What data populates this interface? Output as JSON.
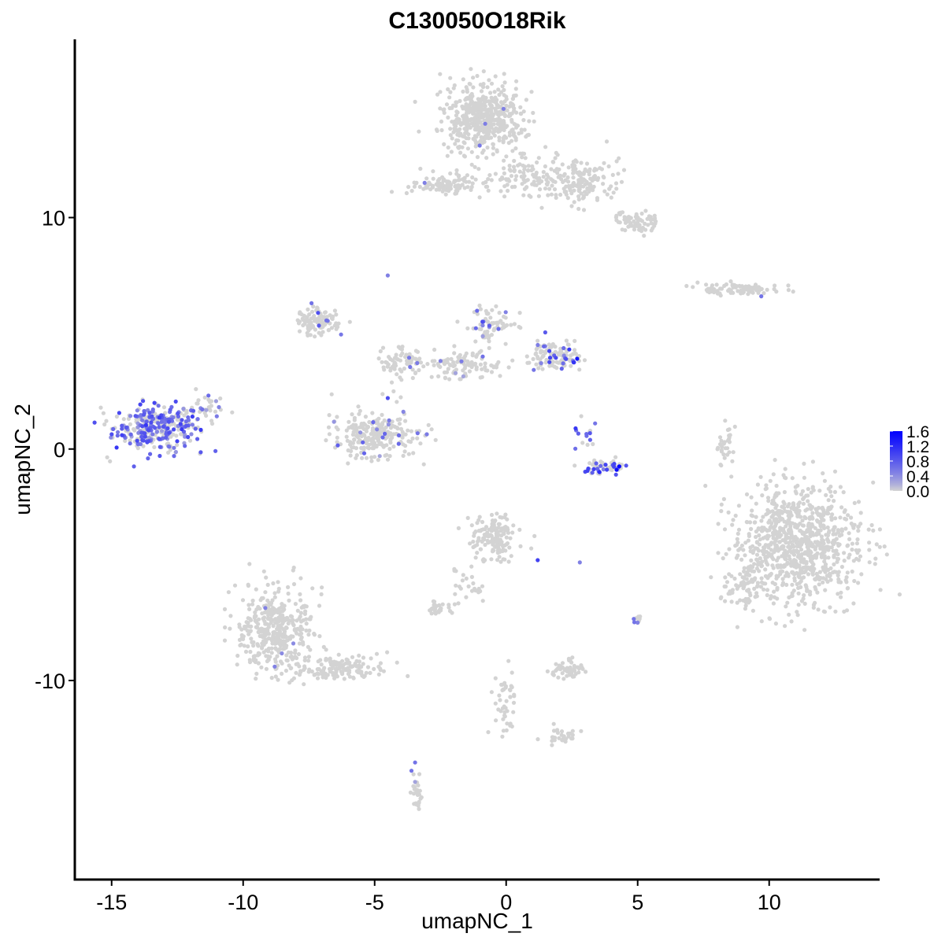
{
  "chart_data": {
    "type": "scatter",
    "title": "C130050O18Rik",
    "xlabel": "umapNC_1",
    "ylabel": "umapNC_2",
    "xlim": [
      -16.4,
      14.2
    ],
    "ylim": [
      -18.6,
      17.7
    ],
    "x_ticks": [
      -15,
      -10,
      -5,
      0,
      5,
      10
    ],
    "x_tick_labels": [
      "-15",
      "-10",
      "-5",
      "0",
      "5",
      "10"
    ],
    "y_ticks": [
      -10,
      0,
      10
    ],
    "y_tick_labels": [
      "-10",
      "0",
      "10"
    ],
    "grid": false,
    "legend": {
      "placement": "right",
      "type": "colorbar",
      "min": 0.0,
      "max": 1.6,
      "ticks": [
        0.0,
        0.4,
        0.8,
        1.2,
        1.6
      ],
      "tick_labels": [
        "0.0",
        "0.4",
        "0.8",
        "1.2",
        "1.6"
      ],
      "color_low": "#d3d3d3",
      "color_high": "#0000ff"
    },
    "background_color": "#d3d3d3",
    "clusters": [
      {
        "id": "left-blob",
        "cx": -13.3,
        "cy": 0.9,
        "rx": 1.5,
        "ry": 0.9,
        "n": 320,
        "expr_frac": 0.55,
        "expr_mean": 0.65
      },
      {
        "id": "left-blob-tail",
        "cx": -11.6,
        "cy": 1.7,
        "rx": 0.9,
        "ry": 0.6,
        "n": 40,
        "expr_frac": 0.2,
        "expr_mean": 0.5
      },
      {
        "id": "top-big",
        "cx": -0.9,
        "cy": 14.3,
        "rx": 1.4,
        "ry": 1.4,
        "n": 520,
        "expr_frac": 0.004,
        "expr_mean": 0.6
      },
      {
        "id": "top-arm-right",
        "cx": 2.8,
        "cy": 11.6,
        "rx": 1.4,
        "ry": 0.9,
        "n": 160,
        "expr_frac": 0.0,
        "expr_mean": 0.0
      },
      {
        "id": "top-arm-lower",
        "cx": 5.0,
        "cy": 9.8,
        "rx": 0.8,
        "ry": 0.4,
        "n": 70,
        "expr_frac": 0.0,
        "expr_mean": 0.0
      },
      {
        "id": "top-left-streak",
        "cx": -2.2,
        "cy": 11.4,
        "rx": 1.3,
        "ry": 0.45,
        "n": 110,
        "expr_frac": 0.01,
        "expr_mean": 0.6
      },
      {
        "id": "top-bridge",
        "cx": 0.9,
        "cy": 11.8,
        "rx": 1.1,
        "ry": 0.8,
        "n": 80,
        "expr_frac": 0.0,
        "expr_mean": 0.0
      },
      {
        "id": "right-streak",
        "cx": 8.9,
        "cy": 6.9,
        "rx": 1.4,
        "ry": 0.25,
        "n": 85,
        "expr_frac": 0.01,
        "expr_mean": 0.5
      },
      {
        "id": "mid-left-arm",
        "cx": -7.1,
        "cy": 5.5,
        "rx": 0.8,
        "ry": 0.5,
        "n": 110,
        "expr_frac": 0.05,
        "expr_mean": 0.55
      },
      {
        "id": "mid-stem",
        "cx": -4.0,
        "cy": 3.8,
        "rx": 0.8,
        "ry": 0.6,
        "n": 70,
        "expr_frac": 0.04,
        "expr_mean": 0.5
      },
      {
        "id": "mid-ring",
        "cx": -5.0,
        "cy": 0.6,
        "rx": 1.5,
        "ry": 0.9,
        "n": 240,
        "expr_frac": 0.04,
        "expr_mean": 0.5
      },
      {
        "id": "mid-upper-right",
        "cx": -0.5,
        "cy": 5.4,
        "rx": 0.8,
        "ry": 0.7,
        "n": 70,
        "expr_frac": 0.1,
        "expr_mean": 0.6
      },
      {
        "id": "mid-right-blob",
        "cx": 1.8,
        "cy": 4.0,
        "rx": 1.0,
        "ry": 0.5,
        "n": 120,
        "expr_frac": 0.18,
        "expr_mean": 0.7
      },
      {
        "id": "mid-connector",
        "cx": -1.6,
        "cy": 3.6,
        "rx": 1.4,
        "ry": 0.6,
        "n": 100,
        "expr_frac": 0.06,
        "expr_mean": 0.5
      },
      {
        "id": "arc-small",
        "cx": 3.8,
        "cy": -0.8,
        "rx": 0.8,
        "ry": 0.3,
        "n": 55,
        "expr_frac": 0.3,
        "expr_mean": 0.9
      },
      {
        "id": "arc-upper",
        "cx": 3.0,
        "cy": 0.6,
        "rx": 0.4,
        "ry": 0.6,
        "n": 15,
        "expr_frac": 0.3,
        "expr_mean": 0.7
      },
      {
        "id": "right-big",
        "cx": 11.1,
        "cy": -4.1,
        "rx": 2.2,
        "ry": 2.3,
        "n": 900,
        "expr_frac": 0.0,
        "expr_mean": 0.0
      },
      {
        "id": "right-big-wing",
        "cx": 9.0,
        "cy": -6.0,
        "rx": 0.7,
        "ry": 0.9,
        "n": 60,
        "expr_frac": 0.0,
        "expr_mean": 0.0
      },
      {
        "id": "right-arc",
        "cx": 8.3,
        "cy": 0.3,
        "rx": 0.3,
        "ry": 0.9,
        "n": 30,
        "expr_frac": 0.0,
        "expr_mean": 0.0
      },
      {
        "id": "bottom-left",
        "cx": -8.8,
        "cy": -7.9,
        "rx": 1.3,
        "ry": 1.7,
        "n": 400,
        "expr_frac": 0.01,
        "expr_mean": 0.5
      },
      {
        "id": "bottom-left-tail",
        "cx": -6.3,
        "cy": -9.5,
        "rx": 1.6,
        "ry": 0.45,
        "n": 140,
        "expr_frac": 0.0,
        "expr_mean": 0.0
      },
      {
        "id": "bottom-mid",
        "cx": -0.5,
        "cy": -3.8,
        "rx": 0.8,
        "ry": 0.9,
        "n": 150,
        "expr_frac": 0.01,
        "expr_mean": 0.5
      },
      {
        "id": "bottom-mid-stem",
        "cx": -1.4,
        "cy": -6.0,
        "rx": 0.5,
        "ry": 0.7,
        "n": 25,
        "expr_frac": 0.0,
        "expr_mean": 0.0
      },
      {
        "id": "bottom-small-left",
        "cx": -2.6,
        "cy": -6.9,
        "rx": 0.5,
        "ry": 0.25,
        "n": 30,
        "expr_frac": 0.0,
        "expr_mean": 0.0
      },
      {
        "id": "bottom-pair",
        "cx": 2.3,
        "cy": -9.5,
        "rx": 0.6,
        "ry": 0.4,
        "n": 55,
        "expr_frac": 0.0,
        "expr_mean": 0.0
      },
      {
        "id": "bottom-vertical",
        "cx": 0.0,
        "cy": -11.0,
        "rx": 0.4,
        "ry": 1.3,
        "n": 45,
        "expr_frac": 0.0,
        "expr_mean": 0.0
      },
      {
        "id": "bottom-right-streak",
        "cx": 2.2,
        "cy": -12.4,
        "rx": 0.7,
        "ry": 0.3,
        "n": 30,
        "expr_frac": 0.0,
        "expr_mean": 0.0
      },
      {
        "id": "bottom-tiny",
        "cx": -3.4,
        "cy": -15.0,
        "rx": 0.2,
        "ry": 0.7,
        "n": 30,
        "expr_frac": 0.02,
        "expr_mean": 0.5
      },
      {
        "id": "small-5",
        "cx": 5.0,
        "cy": -7.3,
        "rx": 0.12,
        "ry": 0.2,
        "n": 8,
        "expr_frac": 0.1,
        "expr_mean": 0.5
      }
    ],
    "highlight_points": [
      {
        "x": 4.3,
        "y": -0.75,
        "v": 1.6
      },
      {
        "x": 4.2,
        "y": -0.9,
        "v": 1.5
      },
      {
        "x": 2.7,
        "y": 3.9,
        "v": 1.4
      },
      {
        "x": 3.55,
        "y": -1.0,
        "v": 1.2
      },
      {
        "x": 2.4,
        "y": 4.3,
        "v": 1.1
      },
      {
        "x": 1.2,
        "y": -4.8,
        "v": 1.0
      },
      {
        "x": -4.5,
        "y": 2.2,
        "v": 0.9
      },
      {
        "x": -0.9,
        "y": 5.5,
        "v": 0.9
      },
      {
        "x": -7.4,
        "y": 6.3,
        "v": 0.6
      },
      {
        "x": -3.6,
        "y": -13.9,
        "v": 0.6
      },
      {
        "x": 9.7,
        "y": 6.6,
        "v": 0.6
      },
      {
        "x": -8.8,
        "y": -9.4,
        "v": 0.5
      },
      {
        "x": 5.0,
        "y": -7.5,
        "v": 0.5
      },
      {
        "x": 2.8,
        "y": -4.9,
        "v": 0.5
      },
      {
        "x": -0.1,
        "y": 14.7,
        "v": 0.5
      },
      {
        "x": -3.1,
        "y": 11.5,
        "v": 0.5
      },
      {
        "x": -4.5,
        "y": 7.5,
        "v": 0.5
      }
    ]
  }
}
